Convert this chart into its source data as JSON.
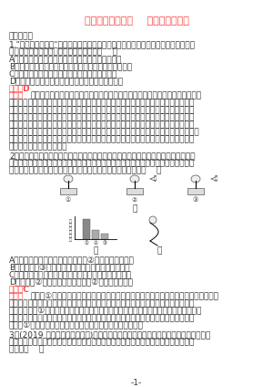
{
  "title": "专题能力训练十一    植物的激素调节",
  "title_color": "#FF4444",
  "section1": "一、选择题",
  "ans1_label": "答案：D",
  "ans1_color": "#FF4444",
  "q2_ans_label": "容案：C",
  "q2_ans_color": "#FF4444",
  "bg_color": "#FFFFFF",
  "text_color": "#333333",
  "page_num": "-1-",
  "font_size": 6.5
}
